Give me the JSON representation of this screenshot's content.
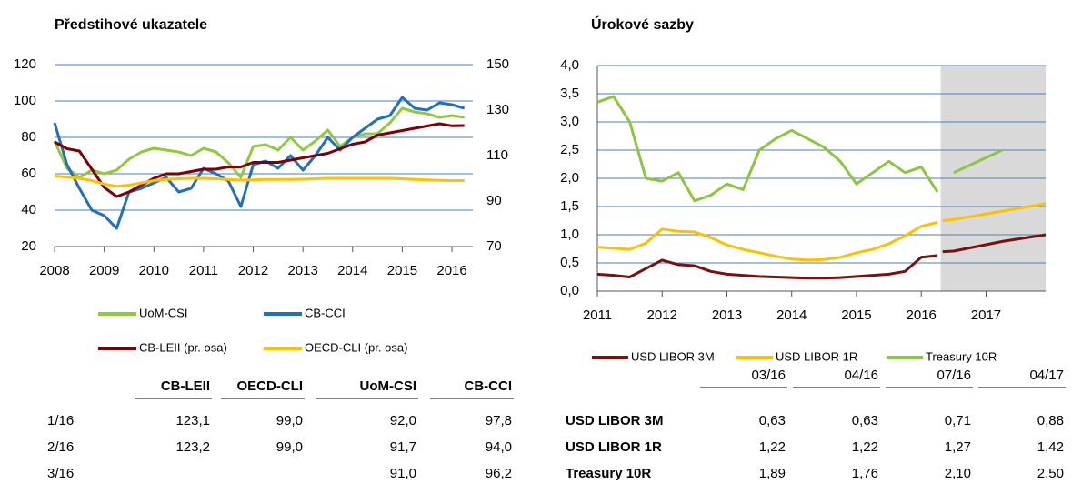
{
  "chart_data": [
    {
      "type": "line",
      "title": "Předstihové ukazatele",
      "x": [
        2008,
        2008.25,
        2008.5,
        2008.75,
        2009,
        2009.25,
        2009.5,
        2009.75,
        2010,
        2010.25,
        2010.5,
        2010.75,
        2011,
        2011.25,
        2011.5,
        2011.75,
        2012,
        2012.25,
        2012.5,
        2012.75,
        2013,
        2013.25,
        2013.5,
        2013.75,
        2014,
        2014.25,
        2014.5,
        2014.75,
        2015,
        2015.25,
        2015.5,
        2015.75,
        2016,
        2016.25
      ],
      "series": [
        {
          "name": "UoM-CSI",
          "color": "#92c83e",
          "values": [
            78,
            63,
            58,
            62,
            60,
            62,
            68,
            72,
            74,
            73,
            72,
            70,
            74,
            72,
            66,
            58,
            75,
            76,
            73,
            80,
            73,
            78,
            84,
            75,
            80,
            82,
            82,
            88,
            96,
            94,
            93,
            91,
            92,
            91
          ]
        },
        {
          "name": "CB-CCI",
          "color": "#1f6fc5",
          "values": [
            88,
            65,
            52,
            40,
            37,
            30,
            50,
            52,
            55,
            58,
            50,
            52,
            63,
            60,
            56,
            42,
            65,
            67,
            63,
            70,
            62,
            70,
            80,
            73,
            80,
            85,
            90,
            92,
            102,
            96,
            95,
            99,
            98,
            96
          ]
        },
        {
          "name": "CB-LEII (pr. osa)",
          "color": "#7f0000",
          "axis": "y2",
          "values": [
            116,
            113,
            112,
            104,
            96,
            92,
            94,
            97,
            100,
            102,
            102,
            103,
            104,
            104,
            105,
            105,
            107,
            107,
            107,
            108,
            109,
            110,
            111,
            113,
            115,
            116,
            119,
            120,
            121,
            122,
            123,
            124,
            123.1,
            123.2
          ]
        },
        {
          "name": "OECD-CLI (pr. osa)",
          "color": "#ffc000",
          "axis": "y2",
          "values": [
            101,
            100.5,
            100,
            99,
            97.5,
            96.5,
            97,
            98,
            99,
            99.5,
            99.8,
            100,
            100,
            99.8,
            99.5,
            99.2,
            99.3,
            99.5,
            99.5,
            99.5,
            99.6,
            99.8,
            100,
            100,
            100,
            100,
            100,
            100,
            99.8,
            99.5,
            99.3,
            99.1,
            99,
            99
          ]
        }
      ],
      "xlim": [
        2008,
        2016.42
      ],
      "xticks": [
        2008,
        2009,
        2010,
        2011,
        2012,
        2013,
        2014,
        2015,
        2016
      ],
      "ylim": [
        20,
        120
      ],
      "yticks": [
        20,
        40,
        60,
        80,
        100,
        120
      ],
      "y2lim": [
        70,
        150
      ],
      "y2ticks": [
        70,
        90,
        110,
        130,
        150
      ],
      "grid": true,
      "grid_color": "#4a7ebb",
      "legend": "bottom"
    },
    {
      "type": "line",
      "title": "Úrokové sazby",
      "series": [
        {
          "name": "USD LIBOR 3M",
          "color": "#7b1010",
          "x": [
            2011,
            2011.25,
            2011.5,
            2011.75,
            2012,
            2012.25,
            2012.5,
            2012.75,
            2013,
            2013.25,
            2013.5,
            2013.75,
            2014,
            2014.25,
            2014.5,
            2014.75,
            2015,
            2015.25,
            2015.5,
            2015.75,
            2016,
            2016.25,
            null,
            2016.33,
            2016.5,
            2017.25,
            2017.92
          ],
          "values": [
            0.3,
            0.28,
            0.25,
            0.4,
            0.55,
            0.47,
            0.45,
            0.35,
            0.3,
            0.28,
            0.26,
            0.25,
            0.24,
            0.23,
            0.23,
            0.24,
            0.26,
            0.28,
            0.3,
            0.35,
            0.6,
            0.63,
            null,
            0.7,
            0.71,
            0.88,
            1.0
          ]
        },
        {
          "name": "USD LIBOR 1R",
          "color": "#ffc000",
          "x": [
            2011,
            2011.25,
            2011.5,
            2011.75,
            2012,
            2012.25,
            2012.5,
            2012.75,
            2013,
            2013.25,
            2013.5,
            2013.75,
            2014,
            2014.25,
            2014.5,
            2014.75,
            2015,
            2015.25,
            2015.5,
            2015.75,
            2016,
            2016.25,
            null,
            2016.33,
            2016.5,
            2017.25,
            2017.92
          ],
          "values": [
            0.78,
            0.76,
            0.74,
            0.85,
            1.1,
            1.06,
            1.05,
            0.95,
            0.82,
            0.74,
            0.68,
            0.62,
            0.57,
            0.55,
            0.56,
            0.6,
            0.68,
            0.74,
            0.84,
            0.98,
            1.15,
            1.22,
            null,
            1.25,
            1.27,
            1.42,
            1.55
          ]
        },
        {
          "name": "Treasury 10R",
          "color": "#8cc63f",
          "x": [
            2011,
            2011.25,
            2011.5,
            2011.75,
            2012,
            2012.25,
            2012.5,
            2012.75,
            2013,
            2013.25,
            2013.5,
            2013.75,
            2014,
            2014.25,
            2014.5,
            2014.75,
            2015,
            2015.25,
            2015.5,
            2015.75,
            2016,
            2016.25,
            null,
            2016.5,
            2017.25
          ],
          "values": [
            3.35,
            3.45,
            3.0,
            2.0,
            1.95,
            2.1,
            1.6,
            1.7,
            1.9,
            1.8,
            2.5,
            2.7,
            2.85,
            2.7,
            2.55,
            2.3,
            1.9,
            2.1,
            2.3,
            2.1,
            2.2,
            1.76,
            null,
            2.1,
            2.5
          ]
        }
      ],
      "xlim": [
        2011,
        2017.92
      ],
      "xticks": [
        2011,
        2012,
        2013,
        2014,
        2015,
        2016,
        2017
      ],
      "ylim": [
        0,
        4
      ],
      "yticks": [
        {
          "value": 0,
          "label": "0,0"
        },
        {
          "value": 0.5,
          "label": "0,5"
        },
        {
          "value": 1,
          "label": "1,0"
        },
        {
          "value": 1.5,
          "label": "1,5"
        },
        {
          "value": 2,
          "label": "2,0"
        },
        {
          "value": 2.5,
          "label": "2,5"
        },
        {
          "value": 3,
          "label": "3,0"
        },
        {
          "value": 3.5,
          "label": "3,5"
        },
        {
          "value": 4,
          "label": "4,0"
        }
      ],
      "shade": {
        "x": [
          2016.3,
          2017.92
        ],
        "color": "#d9d9d9"
      },
      "grid": true,
      "grid_color": "#4a7ebb",
      "legend": "bottom"
    }
  ],
  "tables": [
    {
      "columns": [
        "CB-LEII",
        "OECD-CLI",
        "UoM-CSI",
        "CB-CCI"
      ],
      "rows": [
        {
          "label": "1/16",
          "cells": [
            "123,1",
            "99,0",
            "92,0",
            "97,8"
          ]
        },
        {
          "label": "2/16",
          "cells": [
            "123,2",
            "99,0",
            "91,7",
            "94,0"
          ]
        },
        {
          "label": "3/16",
          "cells": [
            null,
            null,
            "91,0",
            "96,2"
          ]
        }
      ]
    },
    {
      "columns": [
        "03/16",
        "04/16",
        "07/16",
        "04/17"
      ],
      "rows": [
        {
          "label": "USD LIBOR 3M",
          "cells": [
            "0,63",
            "0,63",
            "0,71",
            "0,88"
          ]
        },
        {
          "label": "USD LIBOR 1R",
          "cells": [
            "1,22",
            "1,22",
            "1,27",
            "1,42"
          ]
        },
        {
          "label": "Treasury 10R",
          "cells": [
            "1,89",
            "1,76",
            "2,10",
            "2,50"
          ]
        }
      ]
    }
  ]
}
